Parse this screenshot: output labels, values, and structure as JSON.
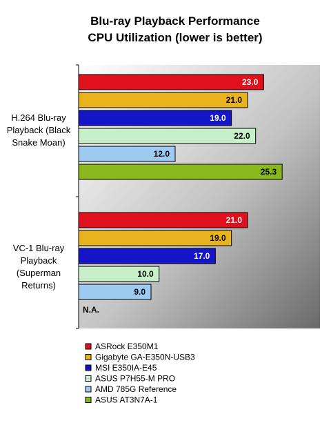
{
  "chart_data": {
    "type": "bar",
    "orientation": "horizontal",
    "title": "Blu-ray Playback Performance",
    "subtitle": "CPU Utilization (lower is better)",
    "categories": [
      "H.264 Blu-ray Playback (Black Snake Moan)",
      "VC-1 Blu-ray Playback (Superman Returns)"
    ],
    "category_label_lines": [
      [
        "H.264 Blu-ray",
        "Playback (Black",
        "Snake Moan)"
      ],
      [
        "VC-1 Blu-ray",
        "Playback",
        "(Superman",
        "Returns)"
      ]
    ],
    "series": [
      {
        "name": "ASRock E350M1",
        "color": "#e0101c",
        "values": [
          23.0,
          21.0
        ]
      },
      {
        "name": "Gigabyte GA-E350N-USB3",
        "color": "#e8b21c",
        "values": [
          21.0,
          19.0
        ]
      },
      {
        "name": "MSI E350IA-E45",
        "color": "#1414c8",
        "values": [
          19.0,
          17.0
        ]
      },
      {
        "name": "ASUS P7H55-M PRO",
        "color": "#c8f0c8",
        "values": [
          22.0,
          10.0
        ]
      },
      {
        "name": "AMD 785G Reference",
        "color": "#9ccaf0",
        "values": [
          12.0,
          9.0
        ]
      },
      {
        "name": "ASUS AT3N7A-1",
        "color": "#88b81c",
        "values": [
          25.3,
          null
        ]
      }
    ],
    "value_labels": [
      [
        "23.0",
        "21.0"
      ],
      [
        "21.0",
        "19.0"
      ],
      [
        "19.0",
        "17.0"
      ],
      [
        "22.0",
        "10.0"
      ],
      [
        "12.0",
        "9.0"
      ],
      [
        "25.3",
        "N.A."
      ]
    ],
    "xlim": [
      0,
      30
    ],
    "grid": false,
    "legend": "bottom-left"
  }
}
